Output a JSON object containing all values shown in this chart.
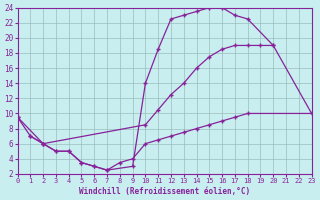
{
  "background_color": "#c8eef0",
  "line_color": "#882299",
  "grid_color": "#9bbcbd",
  "xlabel": "Windchill (Refroidissement éolien,°C)",
  "xlim": [
    0,
    23
  ],
  "ylim": [
    2,
    24
  ],
  "xticks": [
    0,
    1,
    2,
    3,
    4,
    5,
    6,
    7,
    8,
    9,
    10,
    11,
    12,
    13,
    14,
    15,
    16,
    17,
    18,
    19,
    20,
    21,
    22,
    23
  ],
  "yticks": [
    2,
    4,
    6,
    8,
    10,
    12,
    14,
    16,
    18,
    20,
    22,
    24
  ],
  "curve_upper_x": [
    0,
    1,
    2,
    3,
    4,
    5,
    6,
    7,
    9,
    10,
    11,
    12,
    13,
    14,
    15,
    16,
    17,
    18,
    20
  ],
  "curve_upper_y": [
    9.5,
    7.0,
    6.0,
    5.0,
    5.0,
    3.5,
    3.0,
    2.5,
    3.0,
    14.0,
    18.5,
    22.5,
    23.0,
    23.5,
    24.0,
    24.0,
    23.0,
    22.5,
    19.0
  ],
  "curve_mid_x": [
    0,
    2,
    10,
    11,
    12,
    13,
    14,
    15,
    16,
    17,
    18,
    19,
    20,
    23
  ],
  "curve_mid_y": [
    9.5,
    6.0,
    8.5,
    10.5,
    12.5,
    14.0,
    16.0,
    17.5,
    18.5,
    19.0,
    19.0,
    19.0,
    19.0,
    10.0
  ],
  "curve_lower_x": [
    1,
    2,
    3,
    4,
    5,
    6,
    7,
    8,
    9,
    10,
    11,
    12,
    13,
    14,
    15,
    16,
    17,
    18,
    23
  ],
  "curve_lower_y": [
    7.0,
    6.0,
    5.0,
    5.0,
    3.5,
    3.0,
    2.5,
    3.5,
    4.0,
    6.0,
    6.5,
    7.0,
    7.5,
    8.0,
    8.5,
    9.0,
    9.5,
    10.0,
    10.0
  ],
  "curve_bump_x": [
    8
  ],
  "curve_bump_y": [
    9.0
  ]
}
